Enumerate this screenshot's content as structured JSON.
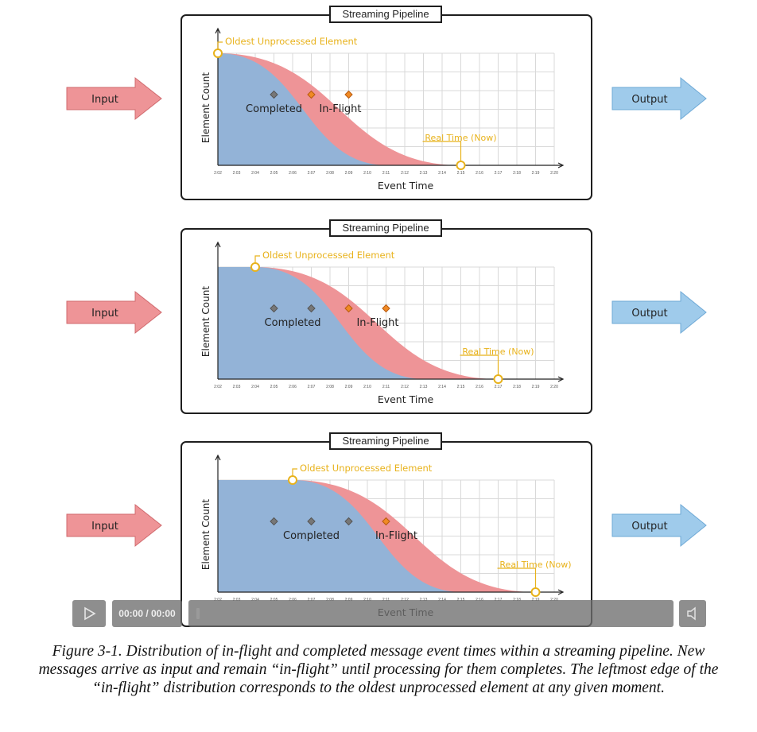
{
  "pipeline_title": "Streaming Pipeline",
  "input_label": "Input",
  "output_label": "Output",
  "y_axis_label": "Element Count",
  "x_axis_label": "Event Time",
  "completed_label": "Completed",
  "in_flight_label": "In-Flight",
  "oldest_label": "Oldest Unprocessed Element",
  "real_time_label": "Real Time (Now)",
  "tick_labels": [
    "2:02",
    "2:03",
    "2:04",
    "2:05",
    "2:06",
    "2:07",
    "2:08",
    "2:09",
    "2:10",
    "2:11",
    "2:12",
    "2:13",
    "2:14",
    "2:15",
    "2:16",
    "2:17",
    "2:18",
    "2:19",
    "2:20"
  ],
  "panels": [
    {
      "oldest_index": 0,
      "real_time_index": 13,
      "completed_dots": [
        3
      ],
      "in_flight_dots": [
        5,
        7
      ]
    },
    {
      "oldest_index": 2,
      "real_time_index": 15,
      "completed_dots": [
        3,
        5
      ],
      "in_flight_dots": [
        7,
        9
      ]
    },
    {
      "oldest_index": 4,
      "real_time_index": 17,
      "completed_dots": [
        3,
        5,
        7
      ],
      "in_flight_dots": [
        9
      ]
    }
  ],
  "colors": {
    "completed": "#93b3d7",
    "in_flight": "#ee9497",
    "highlight": "#e8b21b",
    "input_arrow": "#ee9497",
    "output_arrow": "#9fcbeb"
  },
  "player": {
    "time_display": "00:00 / 00:00",
    "play_icon": "play-icon",
    "volume_icon": "volume-icon"
  },
  "caption": "Figure 3-1. Distribution of in-flight and completed message event times within a streaming pipeline. New messages arrive as input and remain “in-flight” until processing for them completes. The leftmost edge of the “in-flight” distribution corresponds to the oldest unprocessed element at any given moment."
}
